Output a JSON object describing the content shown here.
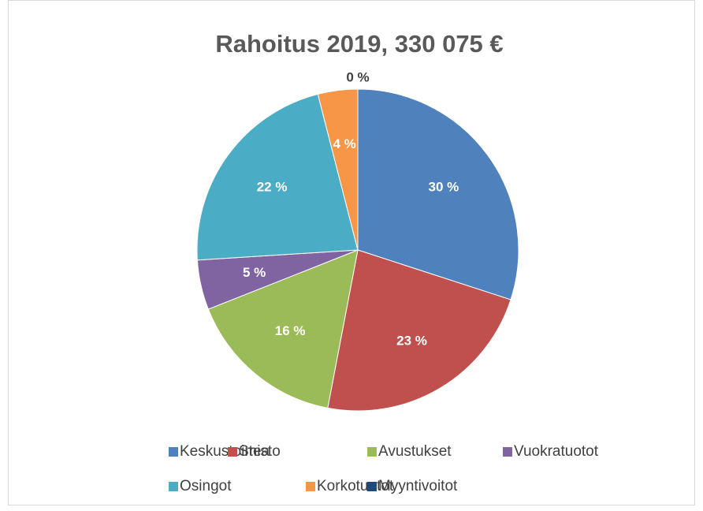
{
  "chart_data": {
    "type": "pie",
    "title": "Rahoitus 2019, 330 075 €",
    "categories": [
      "Keskustoimisto",
      "Stea",
      "Avustukset",
      "Vuokratuotot",
      "Osingot",
      "Korkotuotot",
      "Myyntivoitot"
    ],
    "values": [
      30,
      23,
      16,
      5,
      22,
      4,
      0
    ],
    "value_labels": [
      "30 %",
      "23 %",
      "16 %",
      "5 %",
      "22 %",
      "4 %",
      "0 %"
    ],
    "colors": [
      "#4f81bd",
      "#c0504d",
      "#9bbb59",
      "#8064a2",
      "#4bacc6",
      "#f79646",
      "#1f497d"
    ],
    "legend": "bottom"
  }
}
